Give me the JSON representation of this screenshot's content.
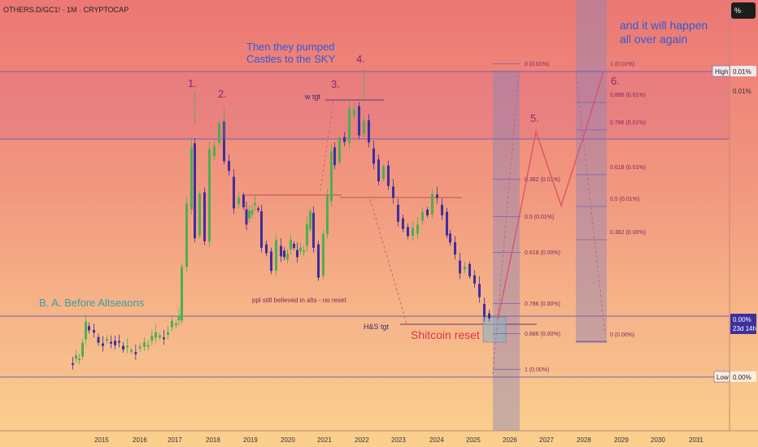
{
  "header": {
    "title": "OTHERS.D/GC1! · 1M · CRYPTOCAP"
  },
  "price_axis": {
    "unit_button": "%",
    "labels": {
      "high_tag": "High",
      "high_value": "0.01%",
      "high_value_2": "0.01%",
      "current_value": "0.00%",
      "countdown": "23d 14h",
      "low_tag": "Low",
      "low_value": "0.00%"
    }
  },
  "annotations": {
    "ba": "B. A. Before Altseaons",
    "pumped_1": "Then they pumped",
    "pumped_2": "Castles to the SKY",
    "believed": "ppl still believed in alts - no reset",
    "shitcoin": "Shitcoin reset",
    "hs": "H&S tgt",
    "wtgt": "w tgt",
    "again_1": "and it will happen",
    "again_2": "all over again",
    "n1": "1.",
    "n2": "2.",
    "n3": "3.",
    "n4": "4.",
    "n5": "5.",
    "n6": "6."
  },
  "colors": {
    "up": "#4caf50",
    "down": "#3d2f9e",
    "level_line": "#7a5fa8",
    "neckline": "#c0504d",
    "band": "#9b8ab5",
    "text_blue": "#2f5bd6",
    "text_teal": "#3a9ea5",
    "text_red": "#e0344c",
    "text_purple": "#8a2a6e"
  },
  "chart_data": {
    "type": "candlestick",
    "x_ticks": [
      "2015",
      "2016",
      "2017",
      "2018",
      "2019",
      "2020",
      "2021",
      "2022",
      "2023",
      "2024",
      "2025",
      "2026",
      "2027",
      "2028",
      "2029",
      "2030",
      "2031"
    ],
    "fib_left": {
      "labels": [
        "0 (0.01%)",
        "0.382 (0.01%)",
        "0.5 (0.01%)",
        "0.618 (0.00%)",
        "0.786 (0.00%)",
        "0.886 (0.00%)",
        "1 (0.00%)"
      ]
    },
    "fib_right": {
      "labels": [
        "1 (0.01%)",
        "0.886 (0.01%)",
        "0.786 (0.01%)",
        "0.618 (0.01%)",
        "0.5 (0.01%)",
        "0.382 (0.00%)",
        "0 (0.00%)"
      ]
    }
  }
}
